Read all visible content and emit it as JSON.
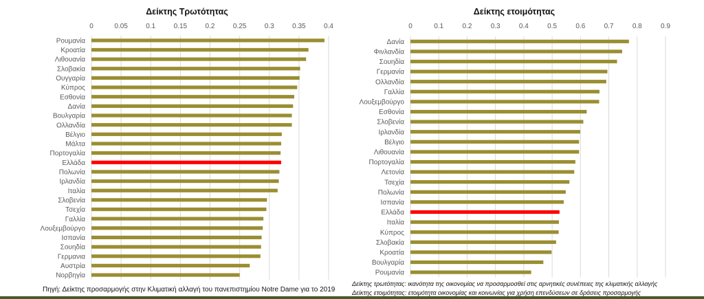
{
  "colors": {
    "bar": "#9a8e32",
    "highlight": "#ff0000",
    "grid": "#d9d9d9",
    "rule": "#4e5a2a"
  },
  "chart_data": [
    {
      "type": "bar",
      "orientation": "horizontal",
      "title": "Δείκτης Τρωτότητας",
      "xlim": [
        0,
        0.4
      ],
      "ticks": [
        "0",
        "0.05",
        "0.1",
        "0.15",
        "0.2",
        "0.25",
        "0.3",
        "0.35",
        "0.4"
      ],
      "grid": true,
      "highlight": "Ελλάδα",
      "categories": [
        "Ρουμανία",
        "Κροατία",
        "Λιθουανία",
        "Σλοβακία",
        "Ουγγαρία",
        "Κύπρος",
        "Εσθονία",
        "Δανία",
        "Βουλγαρία",
        "Ολλανδία",
        "Βέλγιο",
        "Μάλτα",
        "Πορτογαλία",
        "Ελλάδα",
        "Πολωνία",
        "Ιρλανδία",
        "Ιταλία",
        "Σλοβενία",
        "Τσεχία",
        "Γαλλία",
        "Λουξεμβούργο",
        "Ισπανία",
        "Σουηδία",
        "Γερμανια",
        "Αυστρία",
        "Νορβηγία"
      ],
      "values": [
        0.393,
        0.366,
        0.362,
        0.352,
        0.351,
        0.347,
        0.342,
        0.34,
        0.338,
        0.338,
        0.321,
        0.32,
        0.319,
        0.32,
        0.317,
        0.316,
        0.314,
        0.296,
        0.295,
        0.29,
        0.289,
        0.287,
        0.286,
        0.285,
        0.267,
        0.25
      ]
    },
    {
      "type": "bar",
      "orientation": "horizontal",
      "title": "Δείκτης ετοιμότητας",
      "xlim": [
        0,
        0.9
      ],
      "ticks": [
        "0",
        "0.1",
        "0.2",
        "0.3",
        "0.4",
        "0.5",
        "0.6",
        "0.7",
        "0.8",
        "0.9"
      ],
      "grid": true,
      "highlight": "Ελλάδα",
      "categories": [
        "Δανία",
        "Φινλανδία",
        "Σουηδία",
        "Γερμανία",
        "Ολλανδία",
        "Γαλλία",
        "Λουξεμβούργο",
        "Εσθονία",
        "Σλοβενία",
        "Ιρλανδία",
        "Βέλγιο",
        "Λιθουανία",
        "Πορτογαλία",
        "Λετονία",
        "Τσεχία",
        "Πολωνία",
        "Ισπανία",
        "Ελλάδα",
        "Ιταλία",
        "Κύπρος",
        "Σλοβακία",
        "Κροατία",
        "Βουλγαρία",
        "Ρουμανία"
      ],
      "values": [
        0.771,
        0.747,
        0.729,
        0.695,
        0.691,
        0.667,
        0.666,
        0.622,
        0.61,
        0.599,
        0.595,
        0.595,
        0.582,
        0.578,
        0.561,
        0.548,
        0.541,
        0.526,
        0.524,
        0.523,
        0.514,
        0.498,
        0.469,
        0.426
      ]
    }
  ],
  "notes": {
    "source": "Πηγή: Δείκτης προσαρμογής στην Κλιματική αλλαγή του πανεπιστημίου Notre Dame για το 2019",
    "vulnerability_def": "Δείκτης τρωτότητας: ικανότητα της οικονομίας να προσαρμοσθεί στις αρνητικές συνέπειες της κλιματικής αλλαγής",
    "readiness_def": "Δείκτης ετοιμότητας: ετοιμότητα οικονομίας και κοινωνίας για χρήση επενδύσεων σε δράσεις προσαρμογής"
  }
}
